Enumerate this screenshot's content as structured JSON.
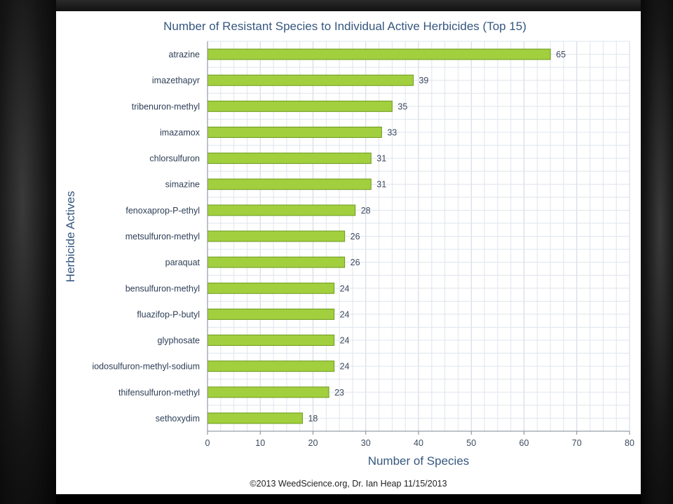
{
  "colors": {
    "bar_fill": "#a2cf3e",
    "bar_stroke": "#6b9a1c",
    "grid": "#dfe4ec",
    "text": "#36577f"
  },
  "chart_data": {
    "type": "bar",
    "orientation": "horizontal",
    "title": "Number of Resistant Species to Individual Active Herbicides (Top 15)",
    "xlabel": "Number of Species",
    "ylabel": "Herbicide Actives",
    "xlim": [
      0,
      80
    ],
    "xticks": [
      0,
      10,
      20,
      30,
      40,
      50,
      60,
      70,
      80
    ],
    "grid": true,
    "data_labels": true,
    "categories": [
      "atrazine",
      "imazethapyr",
      "tribenuron-methyl",
      "imazamox",
      "chlorsulfuron",
      "simazine",
      "fenoxaprop-P-ethyl",
      "metsulfuron-methyl",
      "paraquat",
      "bensulfuron-methyl",
      "fluazifop-P-butyl",
      "glyphosate",
      "iodosulfuron-methyl-sodium",
      "thifensulfuron-methyl",
      "sethoxydim"
    ],
    "values": [
      65,
      39,
      35,
      33,
      31,
      31,
      28,
      26,
      26,
      24,
      24,
      24,
      24,
      23,
      18
    ]
  },
  "footer": {
    "credit": "©2013 WeedScience.org, Dr. Ian Heap 11/15/2013"
  }
}
